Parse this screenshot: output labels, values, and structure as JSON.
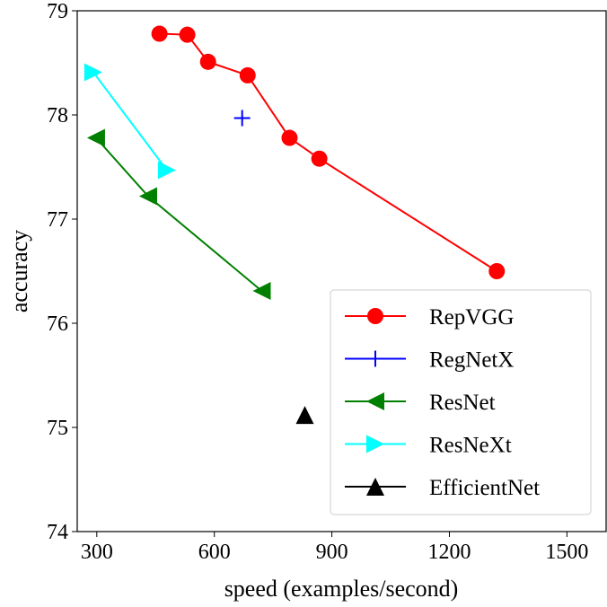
{
  "chart_data": {
    "type": "line",
    "title": "",
    "xlabel": "speed (examples/second)",
    "ylabel": "accuracy",
    "xlim": [
      250,
      1600
    ],
    "ylim": [
      74,
      79
    ],
    "xticks": [
      300,
      600,
      900,
      1200,
      1500
    ],
    "yticks": [
      74,
      75,
      76,
      77,
      78,
      79
    ],
    "grid": false,
    "legend_position": "bottom-right",
    "series": [
      {
        "name": "RepVGG",
        "color": "#ff0000",
        "marker": "circle",
        "line": true,
        "x": [
          460,
          531,
          584,
          685,
          792,
          868,
          1321
        ],
        "y": [
          78.78,
          78.77,
          78.51,
          78.38,
          77.78,
          77.58,
          76.5
        ]
      },
      {
        "name": "RegNetX",
        "color": "#0000ff",
        "marker": "plus",
        "line": true,
        "x": [
          671
        ],
        "y": [
          77.97
        ]
      },
      {
        "name": "ResNet",
        "color": "#008000",
        "marker": "triangle-left",
        "line": true,
        "x": [
          298,
          431,
          721
        ],
        "y": [
          77.78,
          77.22,
          76.31
        ]
      },
      {
        "name": "ResNeXt",
        "color": "#00ffff",
        "marker": "triangle-right",
        "line": true,
        "x": [
          291,
          479
        ],
        "y": [
          78.41,
          77.47
        ]
      },
      {
        "name": "EfficientNet",
        "color": "#000000",
        "marker": "triangle-up",
        "line": true,
        "x": [
          831
        ],
        "y": [
          75.12
        ]
      }
    ]
  }
}
